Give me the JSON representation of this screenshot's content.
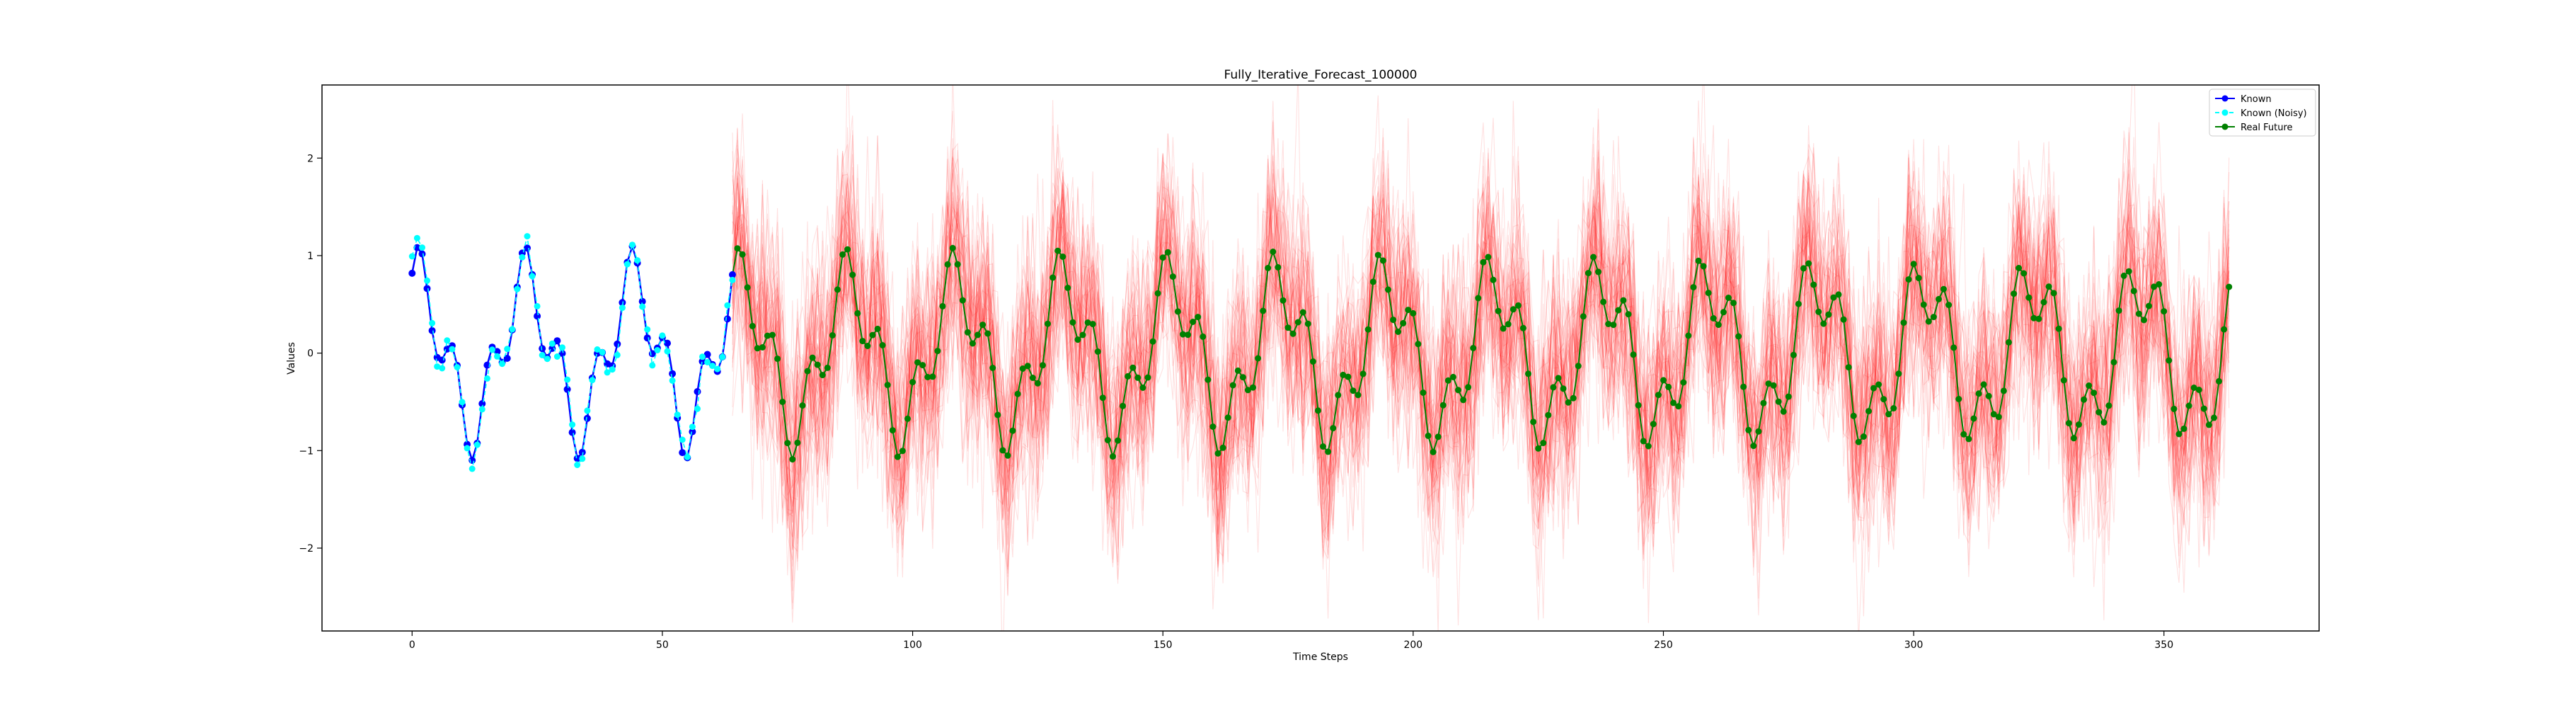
{
  "chart_data": {
    "type": "line",
    "title": "Fully_Iterative_Forecast_100000",
    "xlabel": "Time Steps",
    "ylabel": "Values",
    "xlim": [
      -18,
      381
    ],
    "ylim": [
      -2.85,
      2.75
    ],
    "xticks": [
      0,
      50,
      100,
      150,
      200,
      250,
      300,
      350
    ],
    "xtick_labels": [
      "0",
      "50",
      "100",
      "150",
      "200",
      "250",
      "300",
      "350"
    ],
    "yticks": [
      -2,
      -1,
      0,
      1,
      2
    ],
    "ytick_labels": [
      "−2",
      "−1",
      "0",
      "1",
      "2"
    ],
    "grid": false,
    "legend": {
      "placement": "top-right",
      "entries": [
        "Known",
        "Known (Noisy)",
        "Real Future"
      ]
    },
    "known": {
      "name": "Known",
      "color": "#0000ff",
      "x_start": 0,
      "x_end": 64,
      "description_model": "sum of sines",
      "components": [
        {
          "amplitude": 0.72,
          "period": 21.5,
          "phase": 1.2
        },
        {
          "amplitude": 0.38,
          "period": 7.1,
          "phase": 0.4
        }
      ],
      "offset": 0.0
    },
    "known_noisy": {
      "name": "Known (Noisy)",
      "color": "#00ffff",
      "x_start": 0,
      "x_end": 64,
      "noise_std": 0.07
    },
    "real_future": {
      "name": "Real Future",
      "color": "#008000",
      "x_start": 64,
      "x_end": 363
    },
    "forecast_samples": {
      "color": "#ff0000",
      "x_start": 64,
      "x_end": 363,
      "count": 60,
      "noise_std": 0.6,
      "opacity": 0.12
    }
  }
}
